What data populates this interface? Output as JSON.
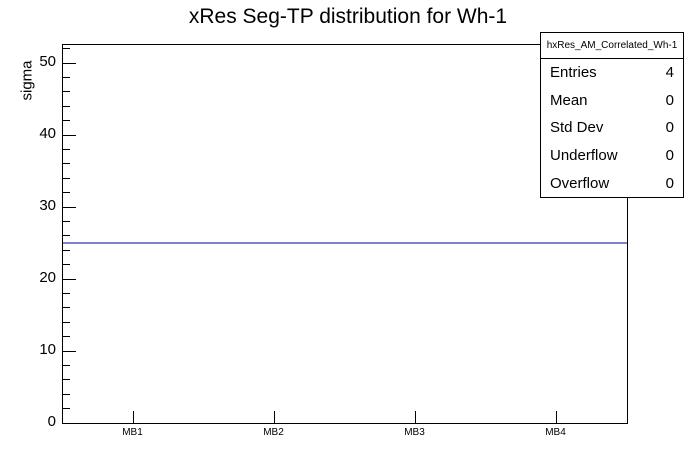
{
  "title": "xRes Seg-TP distribution for Wh-1",
  "chart_data": {
    "type": "line",
    "title": "xRes Seg-TP distribution for Wh-1",
    "xlabel": "",
    "ylabel": "sigma",
    "categories": [
      "MB1",
      "MB2",
      "MB3",
      "MB4"
    ],
    "series": [
      {
        "name": "hxRes_AM_Correlated_Wh-1",
        "values": [
          25,
          25,
          25,
          25
        ]
      }
    ],
    "ylim": [
      0,
      52.5
    ],
    "y_major_ticks": [
      0,
      10,
      20,
      30,
      40,
      50
    ],
    "y_minor_step": 2,
    "grid": false,
    "line_color": "#000099",
    "legend_position": "top-right-stats-box"
  },
  "stats_box": {
    "header": "hxRes_AM_Correlated_Wh-1",
    "rows": [
      {
        "label": "Entries",
        "value": "4"
      },
      {
        "label": "Mean",
        "value": "0"
      },
      {
        "label": "Std Dev",
        "value": "0"
      },
      {
        "label": "Underflow",
        "value": "0"
      },
      {
        "label": "Overflow",
        "value": "0"
      }
    ]
  },
  "colors": {
    "background": "#ffffff",
    "frame_border": "#000000",
    "text": "#000000",
    "histogram_line": "#000099"
  }
}
